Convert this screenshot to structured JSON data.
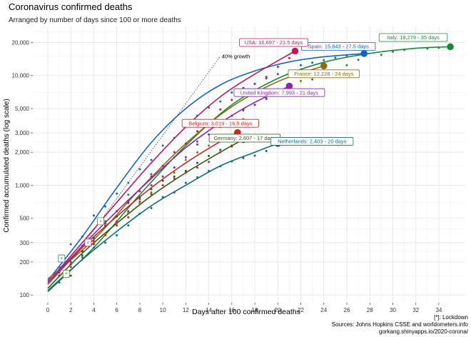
{
  "chart_data": {
    "type": "line",
    "title": "Coronavirus confirmed deaths",
    "subtitle": "Arranged by number of days since 100 or more deaths",
    "xlabel": "Days after 100 confirmed deaths",
    "ylabel": "Confirmed accumulated deaths (log scale)",
    "y_scale": "log",
    "xlim": [
      -1.3,
      36.3
    ],
    "ylim": [
      85,
      28000
    ],
    "x_ticks": [
      0,
      2,
      4,
      6,
      8,
      10,
      12,
      14,
      16,
      18,
      20,
      22,
      24,
      26,
      28,
      30,
      32,
      34
    ],
    "y_ticks": [
      100,
      200,
      300,
      500,
      1000,
      2000,
      3000,
      5000,
      10000,
      20000
    ],
    "y_tick_labels": [
      "100",
      "200",
      "300",
      "500",
      "1,000",
      "2,000",
      "3,000",
      "5,000",
      "10,000",
      "20,000"
    ],
    "growth_reference": {
      "label": "40% growth",
      "rate": 0.4,
      "start": [
        3,
        280
      ],
      "end": [
        15,
        15000
      ]
    },
    "lockdown_markers": [
      {
        "x": 1.2,
        "y": 215,
        "label": "*",
        "color": "#1f77b4"
      },
      {
        "x": 1.6,
        "y": 156,
        "label": "*",
        "color": "#4d7c1f"
      },
      {
        "x": 3.5,
        "y": 300,
        "label": "*",
        "color": "#9b2a9b"
      },
      {
        "x": 4.6,
        "y": 470,
        "label": "*",
        "color": "#6b7c2a"
      }
    ],
    "series": [
      {
        "name": "Italy",
        "color": "#1a8a3a",
        "label": "Italy: 18,279 - 35 days",
        "end": [
          35,
          18279
        ],
        "curve": [
          [
            0,
            107
          ],
          [
            4,
            270
          ],
          [
            8,
            820
          ],
          [
            12,
            2300
          ],
          [
            16,
            5400
          ],
          [
            20,
            9400
          ],
          [
            24,
            13200
          ],
          [
            28,
            15900
          ],
          [
            32,
            17700
          ],
          [
            35,
            18279
          ]
        ],
        "points": [
          [
            2,
            190
          ],
          [
            4,
            300
          ],
          [
            5,
            470
          ],
          [
            7,
            820
          ],
          [
            9,
            1260
          ],
          [
            11,
            1800
          ],
          [
            13,
            2500
          ],
          [
            15,
            3400
          ],
          [
            17,
            4800
          ],
          [
            19,
            6100
          ],
          [
            21,
            8100
          ],
          [
            23,
            9200
          ],
          [
            24,
            10800
          ],
          [
            26,
            12400
          ],
          [
            27,
            13900
          ],
          [
            29,
            15400
          ],
          [
            30,
            16500
          ],
          [
            31,
            17100
          ],
          [
            33,
            17600
          ],
          [
            34,
            17900
          ]
        ]
      },
      {
        "name": "Spain",
        "color": "#1565c0",
        "label": "Spain: 15,843 - 27.5 days",
        "end": [
          27.5,
          15843
        ],
        "curve": [
          [
            0,
            135
          ],
          [
            3,
            340
          ],
          [
            6,
            950
          ],
          [
            9,
            2450
          ],
          [
            12,
            5000
          ],
          [
            15,
            8200
          ],
          [
            18,
            11000
          ],
          [
            21,
            13300
          ],
          [
            24,
            14800
          ],
          [
            27.5,
            15843
          ]
        ],
        "points": [
          [
            1,
            180
          ],
          [
            2,
            290
          ],
          [
            3,
            340
          ],
          [
            4,
            530
          ],
          [
            5,
            640
          ],
          [
            6,
            840
          ],
          [
            7,
            1050
          ],
          [
            8,
            1400
          ],
          [
            9,
            1700
          ],
          [
            10,
            2300
          ],
          [
            11,
            2700
          ],
          [
            12,
            3650
          ],
          [
            13,
            4300
          ],
          [
            14,
            5100
          ],
          [
            15,
            5800
          ],
          [
            16,
            7000
          ],
          [
            17,
            7700
          ],
          [
            18,
            8400
          ],
          [
            19,
            9400
          ],
          [
            20,
            10300
          ],
          [
            21,
            11000
          ],
          [
            22,
            12400
          ],
          [
            23,
            13100
          ],
          [
            24,
            13800
          ],
          [
            25,
            14500
          ],
          [
            26,
            15200
          ]
        ]
      },
      {
        "name": "USA",
        "color": "#c2185b",
        "label": "USA: 16,697 - 21.5 days",
        "end": [
          21.5,
          16697
        ],
        "curve": [
          [
            0,
            130
          ],
          [
            3,
            300
          ],
          [
            6,
            700
          ],
          [
            9,
            1600
          ],
          [
            12,
            3400
          ],
          [
            15,
            6400
          ],
          [
            18,
            10300
          ],
          [
            21.5,
            16697
          ]
        ],
        "points": [
          [
            1,
            150
          ],
          [
            2,
            190
          ],
          [
            3,
            250
          ],
          [
            4,
            310
          ],
          [
            5,
            450
          ],
          [
            6,
            580
          ],
          [
            7,
            720
          ],
          [
            8,
            880
          ],
          [
            9,
            1200
          ],
          [
            10,
            1500
          ],
          [
            11,
            2000
          ],
          [
            12,
            2400
          ],
          [
            13,
            3100
          ],
          [
            14,
            3800
          ],
          [
            15,
            4900
          ],
          [
            16,
            6000
          ],
          [
            17,
            7000
          ],
          [
            18,
            8400
          ],
          [
            19,
            9700
          ],
          [
            20,
            12000
          ],
          [
            21,
            14400
          ]
        ]
      },
      {
        "name": "France",
        "color": "#8d6e0a",
        "label": "France: 12,228 - 24 days",
        "end": [
          24,
          12228
        ],
        "curve": [
          [
            0,
            140
          ],
          [
            4,
            320
          ],
          [
            8,
            920
          ],
          [
            12,
            2400
          ],
          [
            16,
            5200
          ],
          [
            20,
            8800
          ],
          [
            24,
            12228
          ]
        ],
        "points": [
          [
            1,
            170
          ],
          [
            2,
            200
          ],
          [
            3,
            250
          ],
          [
            4,
            300
          ],
          [
            5,
            360
          ],
          [
            6,
            450
          ],
          [
            7,
            560
          ],
          [
            8,
            680
          ],
          [
            9,
            860
          ],
          [
            10,
            1100
          ],
          [
            11,
            1300
          ],
          [
            12,
            1700
          ],
          [
            13,
            1990
          ],
          [
            14,
            2300
          ],
          [
            15,
            2600
          ],
          [
            16,
            3500
          ],
          [
            17,
            4000
          ],
          [
            18,
            5400
          ],
          [
            19,
            6500
          ],
          [
            20,
            7500
          ],
          [
            21,
            8000
          ],
          [
            22,
            8900
          ],
          [
            23,
            10300
          ]
        ]
      },
      {
        "name": "United Kingdom",
        "color": "#8e24aa",
        "label": "United Kingdom: 7,993 - 21 days",
        "end": [
          21,
          7993
        ],
        "curve": [
          [
            0,
            130
          ],
          [
            3,
            280
          ],
          [
            6,
            580
          ],
          [
            9,
            1150
          ],
          [
            12,
            2200
          ],
          [
            15,
            3700
          ],
          [
            18,
            5700
          ],
          [
            21,
            7993
          ]
        ],
        "points": [
          [
            1,
            170
          ],
          [
            2,
            200
          ],
          [
            3,
            280
          ],
          [
            4,
            330
          ],
          [
            5,
            420
          ],
          [
            6,
            470
          ],
          [
            7,
            580
          ],
          [
            8,
            750
          ],
          [
            9,
            1000
          ],
          [
            10,
            1200
          ],
          [
            11,
            1450
          ],
          [
            12,
            1800
          ],
          [
            13,
            2350
          ],
          [
            14,
            2900
          ],
          [
            15,
            3600
          ],
          [
            16,
            4300
          ],
          [
            17,
            4900
          ],
          [
            18,
            5400
          ],
          [
            19,
            6200
          ],
          [
            20,
            7100
          ]
        ]
      },
      {
        "name": "Belgium",
        "color": "#c62828",
        "label": "Belgium: 3,019 - 16.5 days",
        "end": [
          16.5,
          3019
        ],
        "curve": [
          [
            0,
            125
          ],
          [
            3,
            270
          ],
          [
            6,
            520
          ],
          [
            9,
            950
          ],
          [
            12,
            1600
          ],
          [
            15,
            2500
          ],
          [
            16.5,
            3019
          ]
        ],
        "points": [
          [
            1,
            160
          ],
          [
            2,
            180
          ],
          [
            3,
            220
          ],
          [
            4,
            290
          ],
          [
            5,
            350
          ],
          [
            6,
            430
          ],
          [
            7,
            510
          ],
          [
            8,
            710
          ],
          [
            9,
            830
          ],
          [
            10,
            1000
          ],
          [
            11,
            1150
          ],
          [
            12,
            1300
          ],
          [
            13,
            1450
          ],
          [
            14,
            1630
          ],
          [
            15,
            2000
          ],
          [
            16,
            2250
          ]
        ]
      },
      {
        "name": "Germany",
        "color": "#2e5f12",
        "label": "Germany: 2,607 - 17 days",
        "end": [
          17,
          2607
        ],
        "curve": [
          [
            0,
            115
          ],
          [
            3,
            240
          ],
          [
            6,
            450
          ],
          [
            9,
            800
          ],
          [
            12,
            1300
          ],
          [
            15,
            2000
          ],
          [
            17,
            2607
          ]
        ],
        "points": [
          [
            1,
            150
          ],
          [
            2,
            150
          ],
          [
            3,
            250
          ],
          [
            4,
            330
          ],
          [
            5,
            430
          ],
          [
            6,
            520
          ],
          [
            7,
            690
          ],
          [
            8,
            780
          ],
          [
            9,
            920
          ],
          [
            10,
            1100
          ],
          [
            11,
            1200
          ],
          [
            12,
            1350
          ],
          [
            13,
            1600
          ],
          [
            14,
            1850
          ],
          [
            15,
            2100
          ],
          [
            16,
            2300
          ]
        ]
      },
      {
        "name": "Netherlands",
        "color": "#0f6f78",
        "label": "Netherlands: 2,403 - 20 days",
        "end": [
          20,
          2403
        ],
        "curve": [
          [
            0,
            110
          ],
          [
            3,
            210
          ],
          [
            6,
            380
          ],
          [
            9,
            650
          ],
          [
            12,
            1000
          ],
          [
            15,
            1500
          ],
          [
            18,
            2000
          ],
          [
            20,
            2403
          ]
        ],
        "points": [
          [
            1,
            130
          ],
          [
            2,
            200
          ],
          [
            3,
            230
          ],
          [
            4,
            270
          ],
          [
            5,
            300
          ],
          [
            6,
            350
          ],
          [
            7,
            430
          ],
          [
            8,
            550
          ],
          [
            9,
            620
          ],
          [
            10,
            780
          ],
          [
            11,
            860
          ],
          [
            12,
            1050
          ],
          [
            13,
            1180
          ],
          [
            14,
            1350
          ],
          [
            15,
            1490
          ],
          [
            16,
            1650
          ],
          [
            17,
            1770
          ],
          [
            18,
            1860
          ],
          [
            19,
            2050
          ]
        ]
      }
    ],
    "footnote_lines": [
      "[*]: Lockdown",
      "Sources: Johns Hopkins CSSE and worldometers.info",
      "gorkang.shinyapps.io/2020-corona/"
    ]
  }
}
